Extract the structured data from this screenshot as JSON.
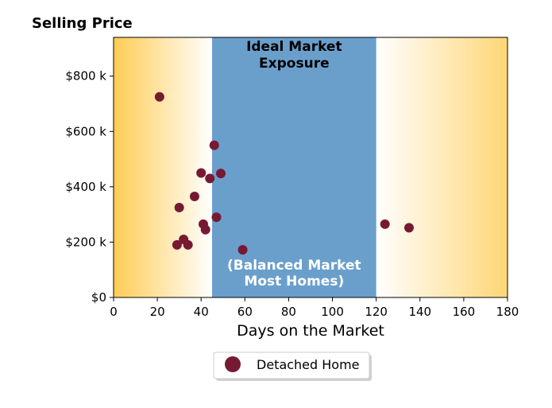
{
  "chart_data": {
    "type": "scatter",
    "title": "Selling Price",
    "xlabel": "Days on the Market",
    "ylabel": "",
    "xlim": [
      0,
      180
    ],
    "ylim": [
      0,
      940000
    ],
    "x_ticks": [
      0,
      20,
      40,
      60,
      80,
      100,
      120,
      140,
      160,
      180
    ],
    "x_tick_labels": [
      "0",
      "20",
      "40",
      "60",
      "80",
      "100",
      "120",
      "140",
      "160",
      "180"
    ],
    "y_ticks": [
      0,
      200000,
      400000,
      600000,
      800000
    ],
    "y_tick_labels": [
      "$0",
      "$200 k",
      "$400 k",
      "$600 k",
      "$800 k"
    ],
    "grid": false,
    "legend_position": "bottom-center",
    "ideal_band": {
      "x_range": [
        45,
        120
      ],
      "label_top": "Ideal Market\nExposure",
      "label_bottom": "(Balanced Market\nMost Homes)",
      "color": "#6a9fcc"
    },
    "side_gradient_color": "#ffcc55",
    "series": [
      {
        "name": "Detached Home",
        "color": "#761a33",
        "x": [
          21,
          29,
          30,
          32,
          34,
          37,
          40,
          41,
          42,
          44,
          46,
          47,
          49,
          59,
          124,
          135
        ],
        "y": [
          725000,
          190000,
          325000,
          210000,
          190000,
          365000,
          450000,
          265000,
          245000,
          430000,
          550000,
          290000,
          448000,
          172000,
          265000,
          252000
        ]
      }
    ]
  }
}
